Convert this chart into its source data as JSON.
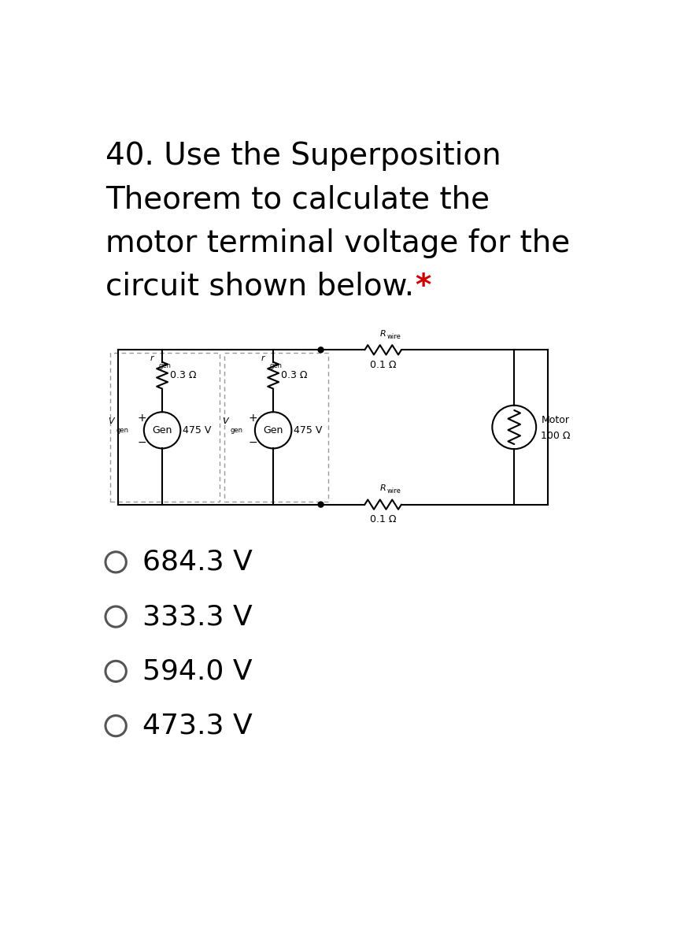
{
  "title_line1": "40. Use the Superposition",
  "title_line2": "Theorem to calculate the",
  "title_line3": "motor terminal voltage for the",
  "title_line4": "circuit shown below.",
  "title_star": "*",
  "title_fontsize": 28,
  "title_color": "#000000",
  "star_color": "#cc0000",
  "bg_color": "#ffffff",
  "ohm": "Ω",
  "minus": "−",
  "gen1_voltage": "475 V",
  "gen2_voltage": "475 V",
  "rgen_val": "0.3",
  "rwire_val": "0.1",
  "motor_r_val": "100",
  "options": [
    "684.3 V",
    "333.3 V",
    "594.0 V",
    "473.3 V"
  ],
  "option_fontsize": 26,
  "option_color": "#555555",
  "option_text_color": "#000000"
}
